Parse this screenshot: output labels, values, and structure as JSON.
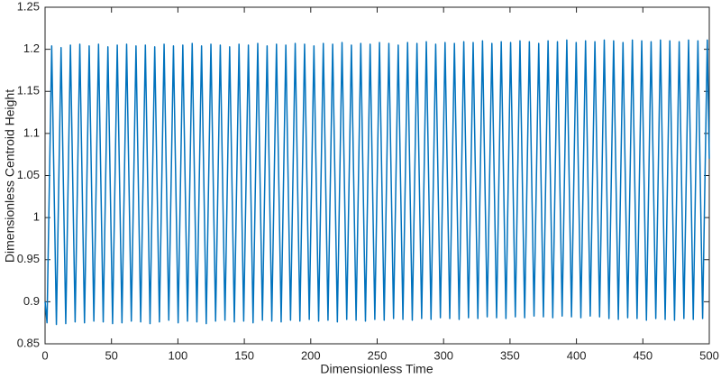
{
  "chart_data": {
    "type": "line",
    "xlabel": "Dimensionless Time",
    "ylabel": "Dimensionless Centroid Height",
    "xlim": [
      0,
      500
    ],
    "ylim": [
      0.85,
      1.25
    ],
    "xticks": [
      0,
      50,
      100,
      150,
      200,
      250,
      300,
      350,
      400,
      450,
      500
    ],
    "yticks": [
      0.85,
      0.9,
      0.95,
      1,
      1.05,
      1.1,
      1.15,
      1.2,
      1.25
    ],
    "x": [
      0,
      1.47,
      5,
      8.53,
      12.05,
      15.58,
      19.1,
      22.63,
      26.15,
      29.68,
      33.2,
      36.73,
      40.25,
      43.78,
      47.3,
      50.83,
      54.35,
      57.88,
      61.4,
      64.93,
      68.45,
      71.98,
      75.5,
      79.03,
      82.55,
      86.08,
      89.6,
      93.13,
      96.65,
      100.18,
      103.7,
      107.23,
      110.75,
      114.28,
      117.8,
      121.33,
      124.85,
      128.38,
      131.9,
      135.43,
      138.95,
      142.48,
      146,
      149.53,
      153.05,
      156.58,
      160.1,
      163.63,
      167.15,
      170.68,
      174.2,
      177.73,
      181.25,
      184.78,
      188.3,
      191.83,
      195.35,
      198.88,
      202.4,
      205.93,
      209.45,
      212.98,
      216.5,
      220.03,
      223.55,
      227.08,
      230.6,
      234.13,
      237.65,
      241.18,
      244.7,
      248.23,
      251.75,
      255.28,
      258.8,
      262.33,
      265.85,
      269.38,
      272.9,
      276.43,
      279.95,
      283.48,
      287,
      290.53,
      294.05,
      297.58,
      301.1,
      304.63,
      308.15,
      311.68,
      315.2,
      318.73,
      322.25,
      325.78,
      329.3,
      332.83,
      336.35,
      339.88,
      343.4,
      346.93,
      350.45,
      353.98,
      357.5,
      361.03,
      364.55,
      368.08,
      371.6,
      375.13,
      378.65,
      382.18,
      385.7,
      389.23,
      392.75,
      396.28,
      399.8,
      403.33,
      406.85,
      410.38,
      413.9,
      417.43,
      420.95,
      424.48,
      428,
      431.53,
      435.05,
      438.58,
      442.1,
      445.63,
      449.15,
      452.68,
      456.2,
      459.73,
      463.25,
      466.78,
      470.3,
      473.83,
      477.35,
      480.88,
      484.4,
      487.93,
      491.45,
      494.98,
      498.5,
      500
    ],
    "series": [
      {
        "color": "#0072bd",
        "values": [
          0.9,
          0.875,
          1.204,
          0.873,
          1.202,
          0.874,
          1.205,
          0.876,
          1.206,
          0.875,
          1.204,
          0.877,
          1.206,
          0.876,
          1.203,
          0.874,
          1.205,
          0.875,
          1.206,
          0.877,
          1.204,
          0.876,
          1.205,
          0.874,
          1.203,
          0.876,
          1.206,
          0.878,
          1.204,
          0.875,
          1.205,
          0.877,
          1.207,
          0.876,
          1.204,
          0.874,
          1.206,
          0.877,
          1.205,
          0.878,
          1.203,
          0.876,
          1.206,
          0.877,
          1.205,
          0.875,
          1.207,
          0.878,
          1.204,
          0.877,
          1.206,
          0.876,
          1.205,
          0.878,
          1.207,
          0.877,
          1.206,
          0.879,
          1.204,
          0.877,
          1.207,
          0.878,
          1.206,
          0.876,
          1.208,
          0.879,
          1.205,
          0.878,
          1.207,
          0.877,
          1.206,
          0.879,
          1.208,
          0.878,
          1.207,
          0.88,
          1.205,
          0.879,
          1.208,
          0.878,
          1.207,
          0.88,
          1.209,
          0.879,
          1.206,
          0.881,
          1.208,
          0.88,
          1.207,
          0.879,
          1.209,
          0.881,
          1.208,
          0.88,
          1.21,
          0.882,
          1.207,
          0.881,
          1.209,
          0.88,
          1.208,
          0.882,
          1.21,
          0.881,
          1.209,
          0.883,
          1.207,
          0.882,
          1.21,
          0.881,
          1.209,
          0.883,
          1.211,
          0.882,
          1.208,
          0.881,
          1.21,
          0.883,
          1.209,
          0.882,
          1.211,
          0.88,
          1.21,
          0.879,
          1.208,
          0.881,
          1.211,
          0.88,
          1.21,
          0.878,
          1.209,
          0.88,
          1.211,
          0.879,
          1.21,
          0.878,
          1.209,
          0.88,
          1.211,
          0.879,
          1.21,
          0.88,
          1.211,
          1.07
        ]
      }
    ]
  }
}
